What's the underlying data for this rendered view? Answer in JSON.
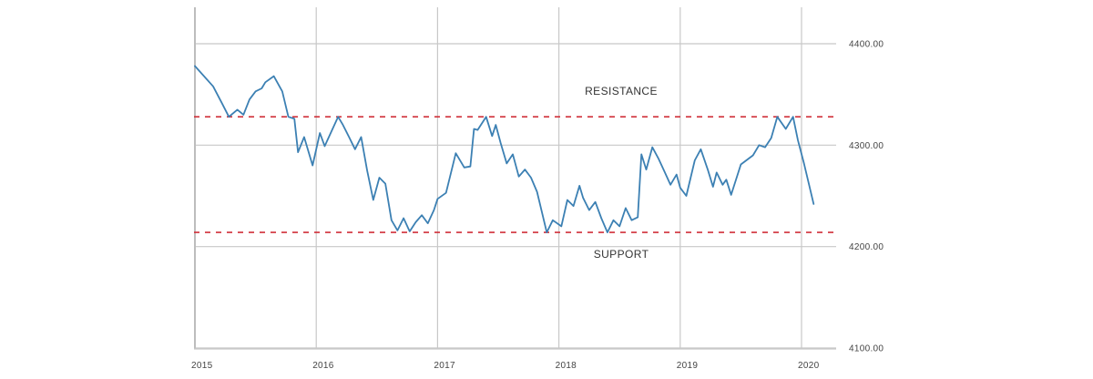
{
  "chart_data": {
    "type": "line",
    "x_tick_labels": [
      "2015",
      "2016",
      "2017",
      "2018",
      "2019",
      "2020"
    ],
    "y_tick_labels": [
      "4400.00",
      "4300.00",
      "4200.00",
      "4100.00"
    ],
    "xlim": [
      2015.0,
      2020.3
    ],
    "ylim": [
      4090,
      4435
    ],
    "y_ticks": [
      4400,
      4300,
      4200,
      4100
    ],
    "x_ticks": [
      2015,
      2016,
      2017,
      2018,
      2019,
      2020
    ],
    "y_axis_position": "right",
    "grid": true,
    "colors": {
      "line": "#3c80b3",
      "levels": "#d0313a",
      "grid": "#c8c8c8"
    },
    "levels": [
      {
        "label": "RESISTANCE",
        "value": 4328,
        "label_position": "above"
      },
      {
        "label": "SUPPORT",
        "value": 4214,
        "label_position": "below"
      }
    ],
    "series": [
      {
        "x": [
          2015.0,
          2015.15,
          2015.22,
          2015.28,
          2015.35,
          2015.4,
          2015.45,
          2015.5,
          2015.55,
          2015.58,
          2015.65,
          2015.72,
          2015.77,
          2015.82,
          2015.85,
          2015.9,
          2015.97,
          2016.03,
          2016.07,
          2016.18,
          2016.22,
          2016.27,
          2016.32,
          2016.37,
          2016.42,
          2016.47,
          2016.52,
          2016.57,
          2016.62,
          2016.67,
          2016.72,
          2016.77,
          2016.82,
          2016.87,
          2016.92,
          2016.97,
          2017.0,
          2017.07,
          2017.15,
          2017.22,
          2017.27,
          2017.3,
          2017.33,
          2017.4,
          2017.45,
          2017.48,
          2017.52,
          2017.57,
          2017.62,
          2017.67,
          2017.72,
          2017.77,
          2017.82,
          2017.9,
          2017.95,
          2018.02,
          2018.07,
          2018.12,
          2018.17,
          2018.2,
          2018.25,
          2018.3,
          2018.35,
          2018.4,
          2018.45,
          2018.5,
          2018.55,
          2018.6,
          2018.65,
          2018.68,
          2018.72,
          2018.77,
          2018.82,
          2018.87,
          2018.92,
          2018.97,
          2019.0,
          2019.05,
          2019.12,
          2019.17,
          2019.23,
          2019.27,
          2019.3,
          2019.35,
          2019.38,
          2019.42,
          2019.5,
          2019.6,
          2019.65,
          2019.7,
          2019.75,
          2019.8,
          2019.87,
          2019.93,
          2019.97,
          2020.02,
          2020.1
        ],
        "y": [
          4378,
          4358,
          4342,
          4328,
          4335,
          4330,
          4345,
          4353,
          4356,
          4362,
          4368,
          4353,
          4328,
          4326,
          4293,
          4308,
          4280,
          4312,
          4299,
          4328,
          4320,
          4308,
          4296,
          4308,
          4275,
          4246,
          4268,
          4262,
          4226,
          4216,
          4228,
          4215,
          4224,
          4231,
          4223,
          4236,
          4247,
          4253,
          4292,
          4278,
          4279,
          4316,
          4315,
          4328,
          4309,
          4320,
          4302,
          4282,
          4291,
          4269,
          4276,
          4268,
          4254,
          4214,
          4226,
          4220,
          4246,
          4240,
          4260,
          4248,
          4236,
          4244,
          4228,
          4214,
          4226,
          4220,
          4238,
          4226,
          4229,
          4291,
          4276,
          4298,
          4287,
          4274,
          4261,
          4271,
          4258,
          4250,
          4285,
          4296,
          4275,
          4259,
          4273,
          4261,
          4266,
          4251,
          4281,
          4290,
          4300,
          4298,
          4307,
          4328,
          4316,
          4328,
          4305,
          4282,
          4242
        ]
      }
    ]
  }
}
